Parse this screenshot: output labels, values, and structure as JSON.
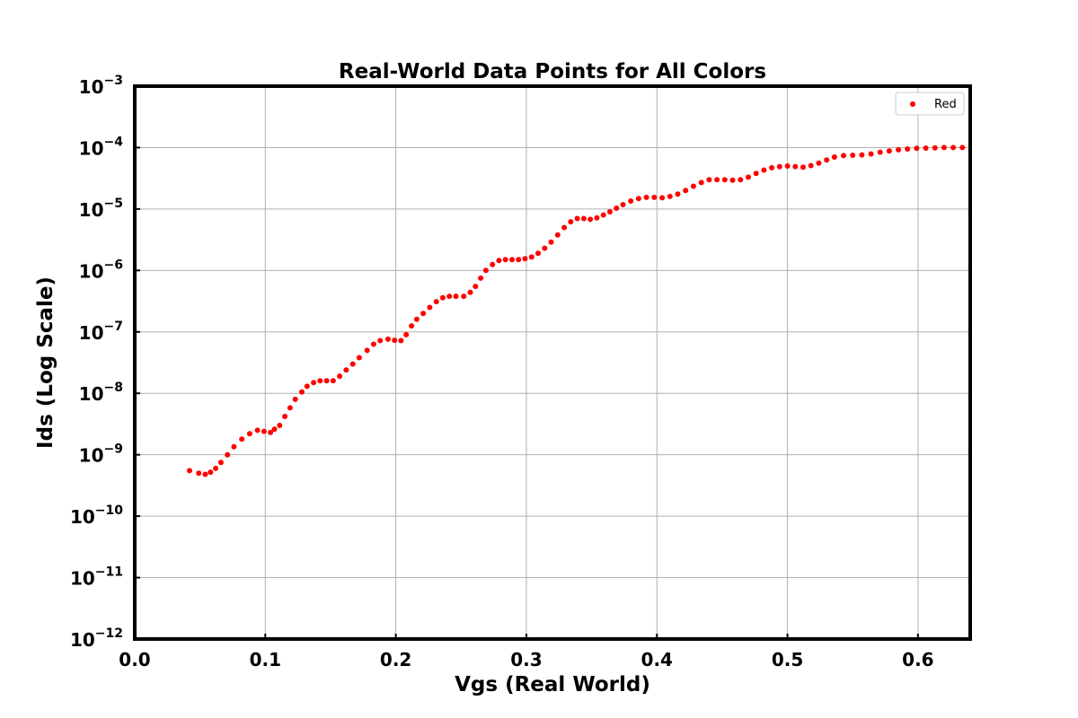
{
  "chart_data": {
    "type": "scatter",
    "title": "Real-World Data Points for All Colors",
    "xlabel": "Vgs (Real World)",
    "ylabel": "Ids (Log Scale)",
    "xlim": [
      0.0,
      0.64
    ],
    "ylim": [
      1e-12,
      0.001
    ],
    "yscale": "log",
    "grid": true,
    "legend_placement": "top-right",
    "x_ticks": [
      "0.0",
      "0.1",
      "0.2",
      "0.3",
      "0.4",
      "0.5",
      "0.6"
    ],
    "y_ticks": [
      {
        "base": "10",
        "exp": "−12"
      },
      {
        "base": "10",
        "exp": "−11"
      },
      {
        "base": "10",
        "exp": "−10"
      },
      {
        "base": "10",
        "exp": "−9"
      },
      {
        "base": "10",
        "exp": "−8"
      },
      {
        "base": "10",
        "exp": "−7"
      },
      {
        "base": "10",
        "exp": "−6"
      },
      {
        "base": "10",
        "exp": "−5"
      },
      {
        "base": "10",
        "exp": "−4"
      },
      {
        "base": "10",
        "exp": "−3"
      }
    ],
    "series": [
      {
        "name": "Red",
        "color": "#ff0000",
        "x": [
          0.042,
          0.049,
          0.054,
          0.058,
          0.062,
          0.066,
          0.071,
          0.076,
          0.082,
          0.088,
          0.094,
          0.099,
          0.104,
          0.107,
          0.111,
          0.115,
          0.119,
          0.123,
          0.128,
          0.132,
          0.137,
          0.142,
          0.147,
          0.152,
          0.157,
          0.162,
          0.167,
          0.172,
          0.178,
          0.183,
          0.188,
          0.194,
          0.199,
          0.204,
          0.208,
          0.212,
          0.216,
          0.221,
          0.226,
          0.231,
          0.236,
          0.241,
          0.246,
          0.252,
          0.257,
          0.261,
          0.265,
          0.269,
          0.274,
          0.279,
          0.284,
          0.289,
          0.294,
          0.299,
          0.304,
          0.309,
          0.314,
          0.319,
          0.324,
          0.329,
          0.334,
          0.339,
          0.344,
          0.349,
          0.354,
          0.359,
          0.364,
          0.369,
          0.374,
          0.38,
          0.386,
          0.392,
          0.398,
          0.404,
          0.41,
          0.416,
          0.422,
          0.428,
          0.434,
          0.44,
          0.446,
          0.452,
          0.458,
          0.464,
          0.47,
          0.476,
          0.482,
          0.488,
          0.494,
          0.5,
          0.506,
          0.512,
          0.518,
          0.524,
          0.53,
          0.536,
          0.543,
          0.55,
          0.557,
          0.564,
          0.571,
          0.578,
          0.585,
          0.592,
          0.599,
          0.606,
          0.613,
          0.62,
          0.627,
          0.634
        ],
        "y": [
          5.5e-10,
          5e-10,
          4.8e-10,
          5.2e-10,
          6e-10,
          7.5e-10,
          1e-09,
          1.35e-09,
          1.8e-09,
          2.2e-09,
          2.5e-09,
          2.4e-09,
          2.3e-09,
          2.6e-09,
          3e-09,
          4.2e-09,
          5.8e-09,
          8e-09,
          1.05e-08,
          1.3e-08,
          1.5e-08,
          1.6e-08,
          1.6e-08,
          1.6e-08,
          1.9e-08,
          2.4e-08,
          3e-08,
          3.8e-08,
          5e-08,
          6.3e-08,
          7.2e-08,
          7.6e-08,
          7.3e-08,
          7.2e-08,
          9e-08,
          1.25e-07,
          1.6e-07,
          2e-07,
          2.5e-07,
          3.1e-07,
          3.6e-07,
          3.8e-07,
          3.8e-07,
          3.8e-07,
          4.4e-07,
          5.5e-07,
          7.5e-07,
          1e-06,
          1.25e-06,
          1.45e-06,
          1.5e-06,
          1.5e-06,
          1.5e-06,
          1.55e-06,
          1.65e-06,
          1.9e-06,
          2.3e-06,
          2.9e-06,
          3.8e-06,
          5e-06,
          6.2e-06,
          7e-06,
          7e-06,
          6.8e-06,
          7.2e-06,
          8e-06,
          9e-06,
          1.03e-05,
          1.18e-05,
          1.35e-05,
          1.48e-05,
          1.55e-05,
          1.55e-05,
          1.52e-05,
          1.6e-05,
          1.75e-05,
          2e-05,
          2.35e-05,
          2.7e-05,
          3e-05,
          3e-05,
          3e-05,
          2.95e-05,
          3e-05,
          3.3e-05,
          3.8e-05,
          4.3e-05,
          4.7e-05,
          4.9e-05,
          5e-05,
          4.9e-05,
          4.8e-05,
          5.1e-05,
          5.6e-05,
          6.3e-05,
          7e-05,
          7.4e-05,
          7.5e-05,
          7.6e-05,
          7.9e-05,
          8.4e-05,
          8.8e-05,
          9.2e-05,
          9.5e-05,
          9.7e-05,
          9.8e-05,
          9.9e-05,
          0.0001,
          0.0001,
          0.0001
        ]
      }
    ]
  }
}
